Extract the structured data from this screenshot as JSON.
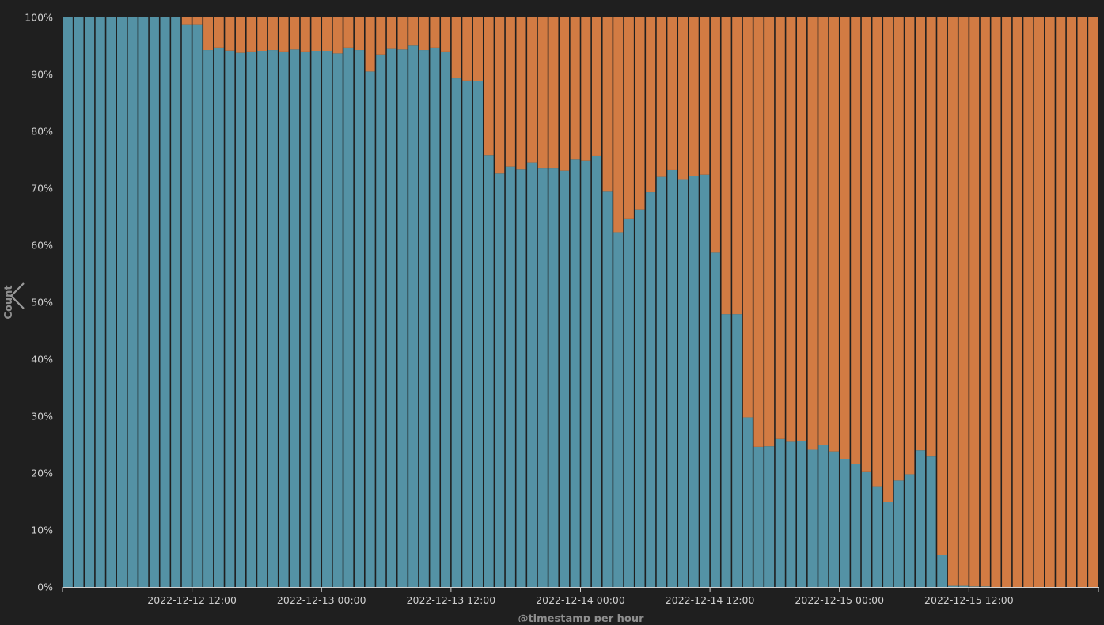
{
  "colors": {
    "background": "#1f1f1f",
    "series_a": "#5492a5",
    "series_b": "#d27b43",
    "bar_gap": "#1f1f1f",
    "axis": "#d0d0d0",
    "tick_text": "#cfcfcf",
    "axis_title": "#8e8e8e"
  },
  "icons": {
    "collapse": "chevron-left-icon"
  },
  "chart_data": {
    "type": "bar",
    "stacked": true,
    "percent_stacked": true,
    "grid": false,
    "xlabel": "@timestamp per hour",
    "ylabel": "Count",
    "ylim": [
      0,
      100
    ],
    "y_ticks": [
      "0%",
      "10%",
      "20%",
      "30%",
      "40%",
      "50%",
      "60%",
      "70%",
      "80%",
      "90%",
      "100%"
    ],
    "x_ticks": [
      {
        "at": 12,
        "label": "2022-12-12 12:00"
      },
      {
        "at": 24,
        "label": "2022-12-13 00:00"
      },
      {
        "at": 36,
        "label": "2022-12-13 12:00"
      },
      {
        "at": 48,
        "label": "2022-12-14 00:00"
      },
      {
        "at": 60,
        "label": "2022-12-14 12:00"
      },
      {
        "at": 72,
        "label": "2022-12-15 00:00"
      },
      {
        "at": 84,
        "label": "2022-12-15 12:00"
      }
    ],
    "bar_count": 96,
    "series": [
      {
        "color": "#5492a5",
        "values": [
          100,
          100,
          100,
          100,
          100,
          100,
          100,
          100,
          100,
          100,
          100,
          98.8,
          98.8,
          94.3,
          94.6,
          94.2,
          93.8,
          93.9,
          94.1,
          94.3,
          93.9,
          94.4,
          93.9,
          94.1,
          94.1,
          93.7,
          94.6,
          94.3,
          90.5,
          93.5,
          94.5,
          94.4,
          95.1,
          94.3,
          94.6,
          93.9,
          89.3,
          88.9,
          88.8,
          75.8,
          72.6,
          73.8,
          73.3,
          74.5,
          73.6,
          73.6,
          73.1,
          75.1,
          74.9,
          75.7,
          69.4,
          62.3,
          64.6,
          66.3,
          69.3,
          72.0,
          73.2,
          71.6,
          72.1,
          72.4,
          58.7,
          47.9,
          47.9,
          29.8,
          24.6,
          24.7,
          26.0,
          25.5,
          25.6,
          24.1,
          25.0,
          23.8,
          22.5,
          21.6,
          20.3,
          17.7,
          14.9,
          18.7,
          19.8,
          24.0,
          22.9,
          5.6,
          0.2,
          0.2,
          0.1,
          0.1,
          0,
          0,
          0,
          0,
          0,
          0,
          0,
          0,
          0,
          0
        ]
      },
      {
        "color": "#d27b43",
        "values": [
          0,
          0,
          0,
          0,
          0,
          0,
          0,
          0,
          0,
          0,
          0,
          1.2,
          1.2,
          5.7,
          5.4,
          5.8,
          6.2,
          6.1,
          5.9,
          5.7,
          6.1,
          5.6,
          6.1,
          5.9,
          5.9,
          6.3,
          5.4,
          5.7,
          9.5,
          6.5,
          5.5,
          5.6,
          4.9,
          5.7,
          5.4,
          6.1,
          10.7,
          11.1,
          11.2,
          24.2,
          27.4,
          26.2,
          26.7,
          25.5,
          26.4,
          26.4,
          26.9,
          24.9,
          25.1,
          24.3,
          30.6,
          37.7,
          35.4,
          33.7,
          30.7,
          28.0,
          26.8,
          28.4,
          27.9,
          27.6,
          41.3,
          52.1,
          52.1,
          70.2,
          75.4,
          75.3,
          74.0,
          74.5,
          74.4,
          75.9,
          75.0,
          76.2,
          77.5,
          78.4,
          79.7,
          82.3,
          85.1,
          81.3,
          80.2,
          76.0,
          77.1,
          94.4,
          99.8,
          99.8,
          99.9,
          99.9,
          100,
          100,
          100,
          100,
          100,
          100,
          100,
          100,
          100,
          100
        ]
      }
    ]
  }
}
